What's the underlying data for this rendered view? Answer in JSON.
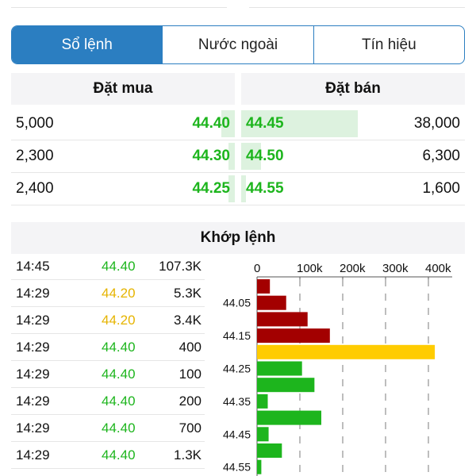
{
  "tabs": [
    {
      "label": "Sổ lệnh",
      "active": true
    },
    {
      "label": "Nước ngoài",
      "active": false
    },
    {
      "label": "Tín hiệu",
      "active": false
    }
  ],
  "order_book": {
    "buy_title": "Đặt mua",
    "sell_title": "Đặt bán",
    "rows": [
      {
        "bid_volume": "5,000",
        "bid_price": "44.40",
        "ask_price": "44.45",
        "ask_volume": "38,000",
        "bid_fill": 0.06,
        "ask_fill": 0.52
      },
      {
        "bid_volume": "2,300",
        "bid_price": "44.30",
        "ask_price": "44.50",
        "ask_volume": "6,300",
        "bid_fill": 0.03,
        "ask_fill": 0.09
      },
      {
        "bid_volume": "2,400",
        "bid_price": "44.25",
        "ask_price": "44.55",
        "ask_volume": "1,600",
        "bid_fill": 0.03,
        "ask_fill": 0.02
      }
    ]
  },
  "matched": {
    "title": "Khớp lệnh",
    "trades": [
      {
        "time": "14:45",
        "price": "44.40",
        "volume": "107.3K",
        "color": "#1db51d"
      },
      {
        "time": "14:29",
        "price": "44.20",
        "volume": "5.3K",
        "color": "#e6b400"
      },
      {
        "time": "14:29",
        "price": "44.20",
        "volume": "3.4K",
        "color": "#e6b400"
      },
      {
        "time": "14:29",
        "price": "44.40",
        "volume": "400",
        "color": "#1db51d"
      },
      {
        "time": "14:29",
        "price": "44.40",
        "volume": "100",
        "color": "#1db51d"
      },
      {
        "time": "14:29",
        "price": "44.40",
        "volume": "200",
        "color": "#1db51d"
      },
      {
        "time": "14:29",
        "price": "44.40",
        "volume": "700",
        "color": "#1db51d"
      },
      {
        "time": "14:29",
        "price": "44.40",
        "volume": "1.3K",
        "color": "#1db51d"
      }
    ]
  },
  "colors": {
    "up": "#1db51d",
    "down": "#a30000",
    "ref": "#ffcc00",
    "accent": "#2b7ec1"
  },
  "chart_data": {
    "type": "bar",
    "orientation": "horizontal",
    "x_ticks": [
      "0",
      "100k",
      "200k",
      "300k",
      "400k"
    ],
    "xlim": [
      0,
      450000
    ],
    "y_tick_labels": [
      "44.05",
      "44.15",
      "44.25",
      "44.35",
      "44.45",
      "44.55"
    ],
    "bars": [
      {
        "price": "44.00",
        "value": 30000,
        "color": "#a30000"
      },
      {
        "price": "44.05",
        "value": 68000,
        "color": "#a30000"
      },
      {
        "price": "44.10",
        "value": 118000,
        "color": "#a30000"
      },
      {
        "price": "44.15",
        "value": 170000,
        "color": "#a30000"
      },
      {
        "price": "44.20",
        "value": 415000,
        "color": "#ffcc00"
      },
      {
        "price": "44.25",
        "value": 105000,
        "color": "#1db51d"
      },
      {
        "price": "44.30",
        "value": 134000,
        "color": "#1db51d"
      },
      {
        "price": "44.35",
        "value": 25000,
        "color": "#1db51d"
      },
      {
        "price": "44.40",
        "value": 150000,
        "color": "#1db51d"
      },
      {
        "price": "44.45",
        "value": 27000,
        "color": "#1db51d"
      },
      {
        "price": "44.50",
        "value": 58000,
        "color": "#1db51d"
      },
      {
        "price": "44.55",
        "value": 10000,
        "color": "#1db51d"
      }
    ]
  }
}
